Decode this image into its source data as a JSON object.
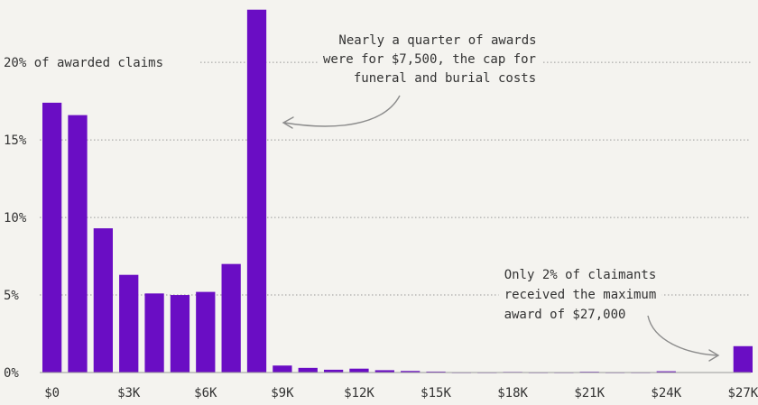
{
  "colors": {
    "bar": "#6a0dc4",
    "background": "#f4f3ef",
    "text": "#333333",
    "grid": "#9a9a9a"
  },
  "chart_data": {
    "type": "bar",
    "ytick_labels": [
      "0%",
      "5%",
      "10%",
      "15%",
      "20% of awarded claims"
    ],
    "yticks": [
      0,
      5,
      10,
      15,
      20
    ],
    "ylim": [
      0,
      23.5
    ],
    "xtick_labels": [
      "$0",
      "$3K",
      "$6K",
      "$9K",
      "$12K",
      "$15K",
      "$18K",
      "$21K",
      "$24K",
      "$27K"
    ],
    "xticks": [
      0,
      3000,
      6000,
      9000,
      12000,
      15000,
      18000,
      21000,
      24000,
      27000
    ],
    "xlim": [
      -375,
      27375
    ],
    "bin_width": 750,
    "x": [
      0,
      1000,
      2000,
      3000,
      4000,
      5000,
      6000,
      7000,
      8000,
      9000,
      10000,
      11000,
      12000,
      13000,
      14000,
      15000,
      16000,
      17000,
      18000,
      19000,
      20000,
      21000,
      22000,
      23000,
      24000,
      25000,
      26000,
      27000
    ],
    "values": [
      17.4,
      16.6,
      9.3,
      6.3,
      5.1,
      5.0,
      5.2,
      7.0,
      23.4,
      0.45,
      0.3,
      0.18,
      0.25,
      0.15,
      0.1,
      0.06,
      0.02,
      0.02,
      0.04,
      0.02,
      0.02,
      0.05,
      0.02,
      0.02,
      0.08,
      0.0,
      0.0,
      1.7
    ],
    "annotations": [
      {
        "lines": [
          "Nearly a quarter of awards",
          "were for $7,500, the cap for",
          "funeral and burial costs"
        ],
        "target_x": 8000,
        "target_y": 16
      },
      {
        "lines": [
          "Only 2% of claimants",
          "received the maximum",
          "award of $27,000"
        ],
        "target_x": 27000,
        "target_y": 1
      }
    ],
    "grid": true
  }
}
